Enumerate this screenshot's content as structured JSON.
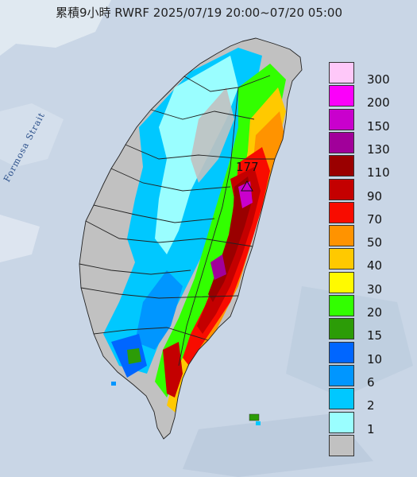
{
  "title": "累積9小時 RWRF 2025/07/19 20:00~07/20 05:00",
  "strait_label": "Formosa Strait",
  "peak_value": "177",
  "legend": [
    {
      "label": "300",
      "color": "#fec8f9"
    },
    {
      "label": "200",
      "color": "#fb00fa"
    },
    {
      "label": "150",
      "color": "#c900cd"
    },
    {
      "label": "130",
      "color": "#a1009a"
    },
    {
      "label": "110",
      "color": "#9a0000"
    },
    {
      "label": "90",
      "color": "#c40000"
    },
    {
      "label": "70",
      "color": "#f80c00"
    },
    {
      "label": "50",
      "color": "#ff9300"
    },
    {
      "label": "40",
      "color": "#ffc900"
    },
    {
      "label": "30",
      "color": "#fffa00"
    },
    {
      "label": "20",
      "color": "#32ff00"
    },
    {
      "label": "15",
      "color": "#2c9c07"
    },
    {
      "label": "10",
      "color": "#0066ff"
    },
    {
      "label": "6",
      "color": "#0096ff"
    },
    {
      "label": "2",
      "color": "#00c8ff"
    },
    {
      "label": "1",
      "color": "#9afeff"
    },
    {
      "label": "",
      "color": "#c1c1c1"
    }
  ]
}
